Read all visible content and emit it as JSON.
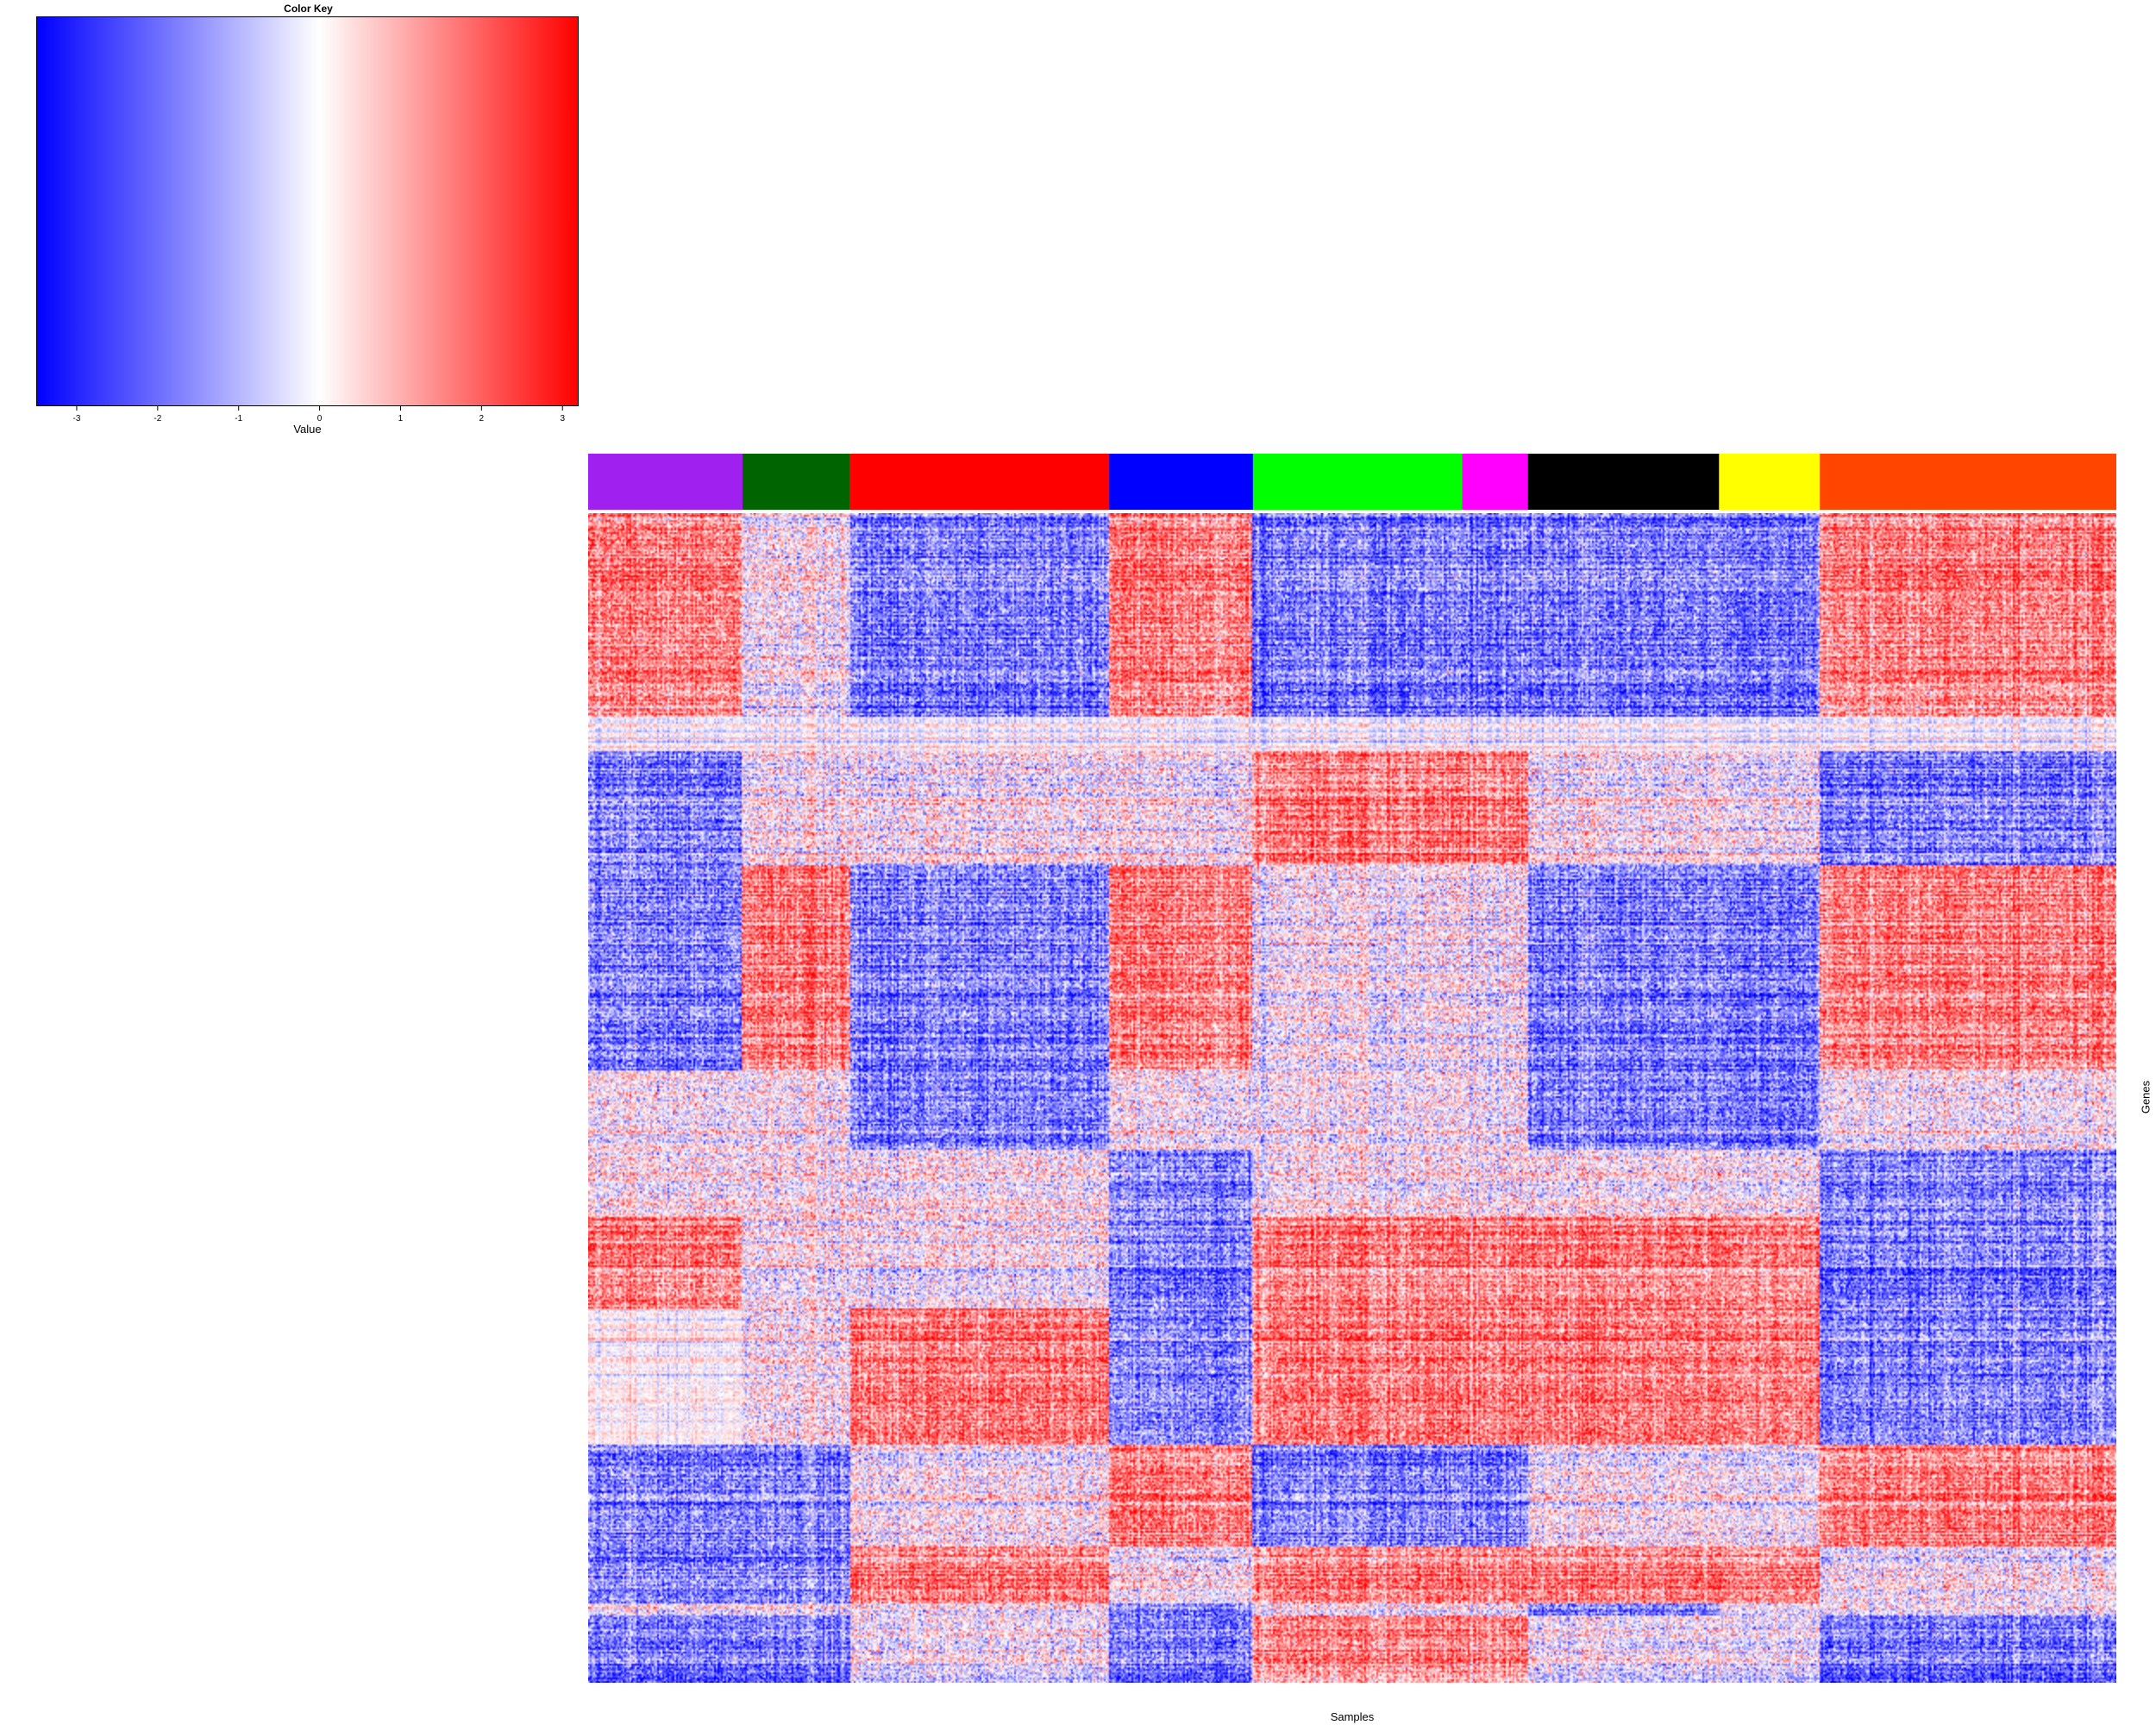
{
  "color_key": {
    "title": "Color Key",
    "xlabel": "Value",
    "ticks": [
      -3,
      -2,
      -1,
      0,
      1,
      2,
      3
    ],
    "range": [
      -3.5,
      3.2
    ],
    "low_color": "#0000ff",
    "mid_color": "#ffffff",
    "high_color": "#ff0000"
  },
  "chart_data": {
    "type": "heatmap",
    "xlabel": "Samples",
    "ylabel": "Genes",
    "sample_groups": [
      {
        "color": "#a020f0",
        "fraction": 0.101
      },
      {
        "color": "#006400",
        "fraction": 0.07
      },
      {
        "color": "#ff0000",
        "fraction": 0.17
      },
      {
        "color": "#0000ff",
        "fraction": 0.094
      },
      {
        "color": "#00ff00",
        "fraction": 0.137
      },
      {
        "color": "#ff00ff",
        "fraction": 0.043
      },
      {
        "color": "#000000",
        "fraction": 0.125
      },
      {
        "color": "#ffff00",
        "fraction": 0.066
      },
      {
        "color": "#ff4500",
        "fraction": 0.194
      }
    ],
    "gene_blocks": [
      {
        "fraction": 0.18,
        "levels": [
          "H",
          "M",
          "L",
          "H",
          "L",
          "L",
          "L",
          "L",
          "H"
        ]
      },
      {
        "fraction": 0.03,
        "levels": [
          "W",
          "W",
          "W",
          "W",
          "W",
          "W",
          "W",
          "W",
          "W"
        ]
      },
      {
        "fraction": 0.1,
        "levels": [
          "L",
          "M",
          "M",
          "M",
          "H",
          "H",
          "M",
          "M",
          "L"
        ]
      },
      {
        "fraction": 0.11,
        "levels": [
          "L",
          "H",
          "L",
          "H",
          "M",
          "M",
          "L",
          "L",
          "H"
        ]
      },
      {
        "fraction": 0.07,
        "levels": [
          "L",
          "H",
          "L",
          "H",
          "M",
          "M",
          "L",
          "L",
          "H"
        ]
      },
      {
        "fraction": 0.07,
        "levels": [
          "M",
          "M",
          "L",
          "M",
          "M",
          "M",
          "L",
          "L",
          "M"
        ]
      },
      {
        "fraction": 0.06,
        "levels": [
          "M",
          "M",
          "M",
          "L",
          "M",
          "M",
          "M",
          "M",
          "L"
        ]
      },
      {
        "fraction": 0.08,
        "levels": [
          "H",
          "M",
          "M",
          "L",
          "H",
          "H",
          "H",
          "H",
          "L"
        ]
      },
      {
        "fraction": 0.12,
        "levels": [
          "W",
          "M",
          "H",
          "L",
          "H",
          "H",
          "H",
          "H",
          "L"
        ]
      },
      {
        "fraction": 0.09,
        "levels": [
          "L",
          "L",
          "M",
          "H",
          "L",
          "L",
          "M",
          "M",
          "H"
        ]
      },
      {
        "fraction": 0.05,
        "levels": [
          "L",
          "L",
          "H",
          "M",
          "H",
          "H",
          "H",
          "H",
          "M"
        ]
      },
      {
        "fraction": 0.01,
        "levels": [
          "M",
          "M",
          "M",
          "L",
          "M",
          "M",
          "L",
          "M",
          "M"
        ]
      },
      {
        "fraction": 0.06,
        "levels": [
          "L",
          "L",
          "M",
          "L",
          "H",
          "H",
          "M",
          "M",
          "L"
        ]
      }
    ]
  }
}
